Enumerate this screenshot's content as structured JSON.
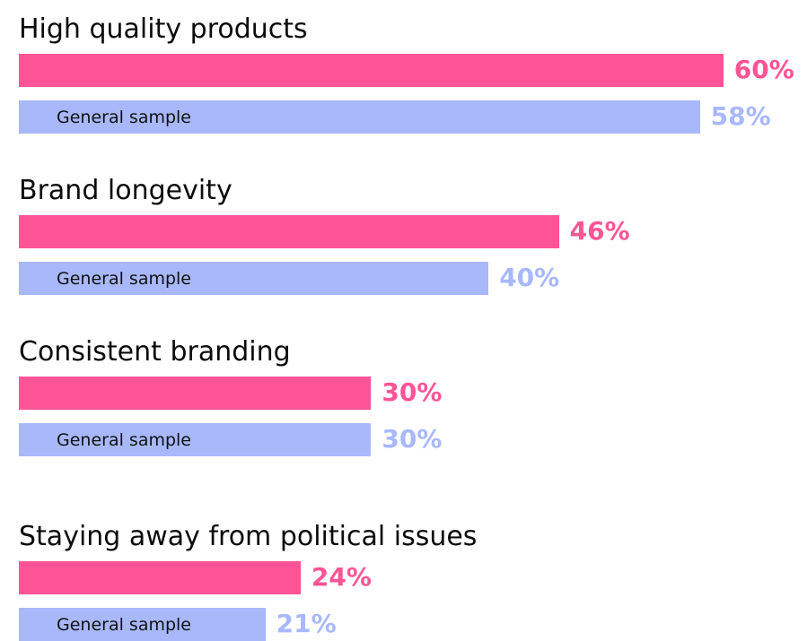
{
  "chart_data": {
    "type": "bar",
    "orientation": "horizontal",
    "categories": [
      "High quality products",
      "Brand longevity",
      "Consistent branding",
      "Staying away from political issues"
    ],
    "series": [
      {
        "values": [
          60,
          46,
          30,
          24
        ],
        "value_labels": [
          "60%",
          "46%",
          "30%",
          "24%"
        ],
        "color": "#ff5495"
      },
      {
        "name": "General sample",
        "values": [
          58,
          40,
          30,
          21
        ],
        "value_labels": [
          "58%",
          "40%",
          "30%",
          "21%"
        ],
        "color": "#a8b8fb"
      }
    ],
    "unit": "%",
    "grid": false,
    "legend": "none"
  }
}
